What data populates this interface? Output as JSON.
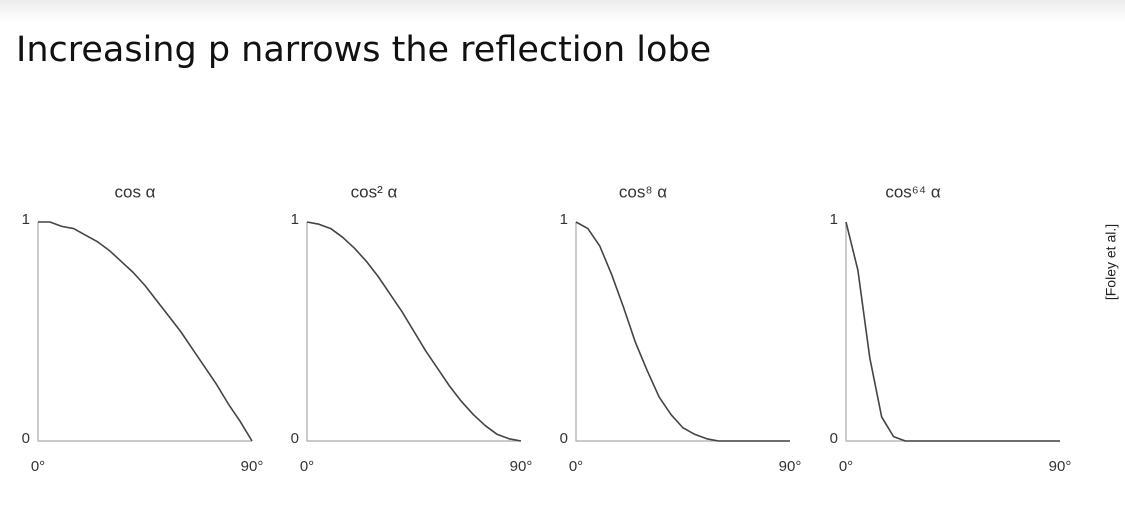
{
  "slide": {
    "title": "Increasing p narrows the reflection lobe",
    "citation": "[Foley et al.]"
  },
  "chart_data": [
    {
      "type": "line",
      "title": "cos α",
      "color": "#444444",
      "x": [
        0,
        5,
        10,
        15,
        20,
        25,
        30,
        35,
        40,
        45,
        50,
        55,
        60,
        65,
        70,
        75,
        80,
        85,
        90
      ],
      "values": [
        1,
        1,
        0.98,
        0.97,
        0.94,
        0.91,
        0.87,
        0.82,
        0.77,
        0.71,
        0.64,
        0.57,
        0.5,
        0.42,
        0.34,
        0.26,
        0.17,
        0.09,
        0
      ],
      "xlim": [
        0,
        90
      ],
      "ylim": [
        0,
        1
      ],
      "yticks": [
        0,
        1
      ],
      "xticks": [
        {
          "value": 0,
          "label": "0°"
        },
        {
          "value": 90,
          "label": "90°"
        }
      ]
    },
    {
      "type": "line",
      "title": "cos² α",
      "color": "#444444",
      "x": [
        0,
        5,
        10,
        15,
        20,
        25,
        30,
        35,
        40,
        45,
        50,
        55,
        60,
        65,
        70,
        75,
        80,
        85,
        90
      ],
      "values": [
        1,
        0.99,
        0.97,
        0.93,
        0.88,
        0.82,
        0.75,
        0.67,
        0.59,
        0.5,
        0.41,
        0.33,
        0.25,
        0.18,
        0.12,
        0.07,
        0.03,
        0.01,
        0
      ],
      "xlim": [
        0,
        90
      ],
      "ylim": [
        0,
        1
      ],
      "yticks": [
        0,
        1
      ],
      "xticks": [
        {
          "value": 0,
          "label": "0°"
        },
        {
          "value": 90,
          "label": "90°"
        }
      ]
    },
    {
      "type": "line",
      "title": "cos⁸ α",
      "color": "#444444",
      "x": [
        0,
        5,
        10,
        15,
        20,
        25,
        30,
        35,
        40,
        45,
        50,
        55,
        60,
        65,
        70,
        75,
        80,
        85,
        90
      ],
      "values": [
        1,
        0.97,
        0.89,
        0.76,
        0.61,
        0.45,
        0.32,
        0.2,
        0.12,
        0.06,
        0.03,
        0.01,
        0,
        0,
        0,
        0,
        0,
        0,
        0
      ],
      "xlim": [
        0,
        90
      ],
      "ylim": [
        0,
        1
      ],
      "yticks": [
        0,
        1
      ],
      "xticks": [
        {
          "value": 0,
          "label": "0°"
        },
        {
          "value": 90,
          "label": "90°"
        }
      ]
    },
    {
      "type": "line",
      "title": "cos⁶⁴ α",
      "color": "#444444",
      "x": [
        0,
        5,
        10,
        15,
        20,
        25,
        30,
        35,
        40,
        45,
        50,
        55,
        60,
        65,
        70,
        75,
        80,
        85,
        90
      ],
      "values": [
        1,
        0.78,
        0.38,
        0.11,
        0.02,
        0,
        0,
        0,
        0,
        0,
        0,
        0,
        0,
        0,
        0,
        0,
        0,
        0,
        0
      ],
      "xlim": [
        0,
        90
      ],
      "ylim": [
        0,
        1
      ],
      "yticks": [
        0,
        1
      ],
      "xticks": [
        {
          "value": 0,
          "label": "0°"
        },
        {
          "value": 90,
          "label": "90°"
        }
      ]
    }
  ]
}
